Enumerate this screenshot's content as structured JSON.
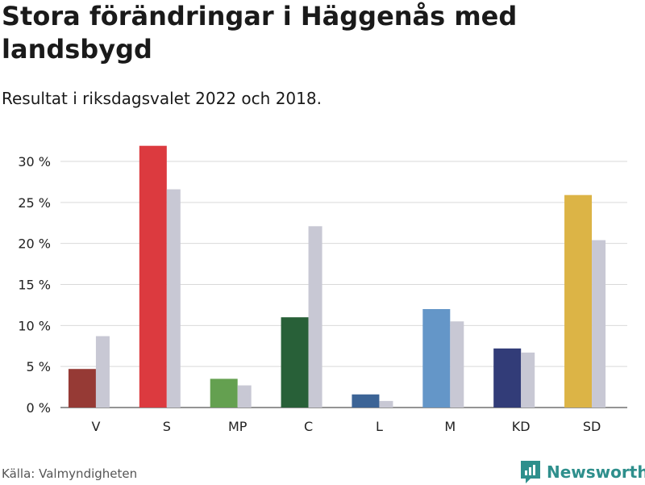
{
  "title": "Stora förändringar i Häggenås med landsbygd",
  "subtitle": "Resultat i riksdagsvalet 2022 och 2018.",
  "source": "Källa: Valmyndigheten",
  "brand": "Newsworthy",
  "colors": {
    "compare": "#c8c8d4",
    "grid": "#d9d9d9",
    "brand": "#2e8f8c"
  },
  "chart_data": {
    "type": "bar",
    "categories": [
      "V",
      "S",
      "MP",
      "C",
      "L",
      "M",
      "KD",
      "SD"
    ],
    "series": [
      {
        "values": [
          4.7,
          31.9,
          3.5,
          11.0,
          1.6,
          12.0,
          7.2,
          25.9
        ],
        "colors": [
          "#963a35",
          "#dc3a3f",
          "#64a050",
          "#286038",
          "#3c6496",
          "#6496c8",
          "#323c78",
          "#dcb446"
        ]
      },
      {
        "values": [
          8.7,
          26.6,
          2.7,
          22.1,
          0.8,
          10.5,
          6.7,
          20.4
        ],
        "color": "#c8c8d4"
      }
    ],
    "yticks": [
      0,
      5,
      10,
      15,
      20,
      25,
      30
    ],
    "ytick_labels": [
      "0 %",
      "5 %",
      "10 %",
      "15 %",
      "20 %",
      "25 %",
      "30 %"
    ],
    "ylim": [
      0,
      30
    ],
    "grid": true
  }
}
